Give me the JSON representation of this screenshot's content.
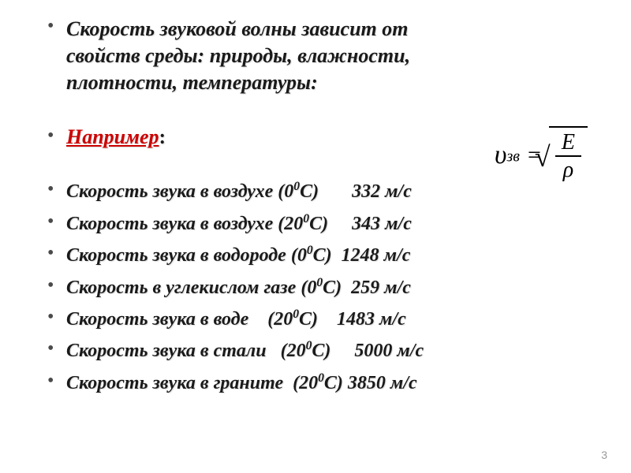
{
  "heading": {
    "line1": "Скорость звуковой волны зависит от",
    "line2_plain": "свойств среды: ",
    "line2_italic": "природы, влажности,",
    "line3_italic": "плотности, температуры:"
  },
  "example_label": "Например",
  "example_colon": ":",
  "formula": {
    "variable": "υ",
    "subscript": "зв",
    "numerator": "E",
    "denominator": "ρ"
  },
  "rows": [
    {
      "label": "Скорость звука в воздухе",
      "temp_base": "0",
      "temp_exp": "0",
      "temp_unit": "С",
      "gap": "       ",
      "value": "332 м/с"
    },
    {
      "label": "Скорость звука в воздухе",
      "temp_base": "20",
      "temp_exp": "0",
      "temp_unit": "С",
      "gap": "     ",
      "value": "343 м/с"
    },
    {
      "label": "Скорость звука в водороде",
      "temp_base": "0",
      "temp_exp": "0",
      "temp_unit": "С",
      "gap": "  ",
      "value": "1248 м/с"
    },
    {
      "label": "Скорость в углекислом газе",
      "temp_base": "0",
      "temp_exp": "0",
      "temp_unit": "С",
      "gap": "  ",
      "value": "259 м/с"
    },
    {
      "label": "Скорость звука в воде   ",
      "temp_base": "20",
      "temp_exp": "0",
      "temp_unit": "С",
      "gap": "    ",
      "value": "1483 м/с"
    },
    {
      "label": "Скорость звука в стали  ",
      "temp_base": "20",
      "temp_exp": "0",
      "temp_unit": "С",
      "gap": "     ",
      "value": "5000 м/с"
    },
    {
      "label": "Скорость звука в граните ",
      "temp_base": "20",
      "temp_exp": "0",
      "temp_unit": "С",
      "gap": " ",
      "value": "3850 м/с"
    }
  ],
  "page_number": "3",
  "colors": {
    "text": "#1a1a1a",
    "accent": "#cc0000",
    "bullet": "#4a4a4a",
    "background": "#ffffff",
    "page_num": "#999999"
  },
  "typography": {
    "heading_fontsize": 26,
    "data_fontsize": 24,
    "formula_fontsize": 34,
    "font_family": "Times New Roman"
  }
}
